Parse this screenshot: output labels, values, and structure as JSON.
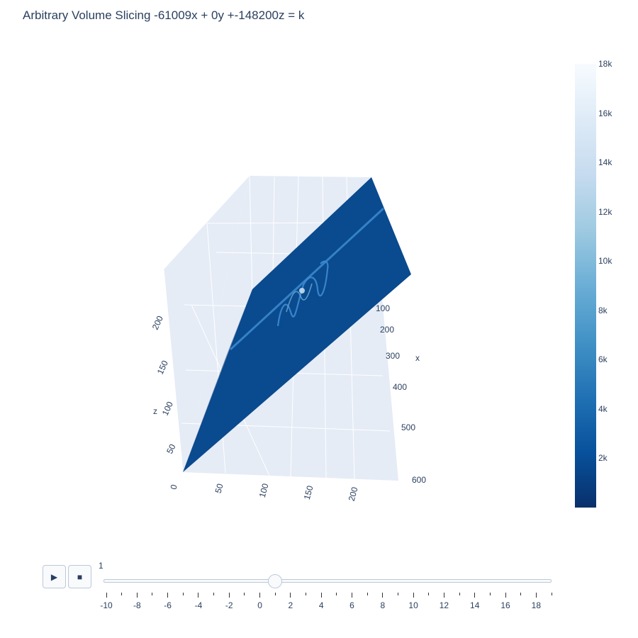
{
  "title": "Arbitrary Volume Slicing -61009x + 0y +-148200z = k",
  "chart_data": {
    "type": "surface",
    "colorscale": "Blues (reversed)",
    "axes": {
      "x": {
        "label": "x",
        "ticks": [
          "100",
          "200",
          "300",
          "400",
          "500",
          "600"
        ]
      },
      "y": {
        "label": "",
        "ticks": [
          "0",
          "50",
          "100",
          "150",
          "200"
        ]
      },
      "z": {
        "label": "z",
        "ticks": [
          "50",
          "100",
          "150",
          "200"
        ]
      }
    },
    "colorbar": {
      "range": [
        0,
        18000
      ],
      "ticks": [
        "2k",
        "4k",
        "6k",
        "8k",
        "10k",
        "12k",
        "14k",
        "16k",
        "18k"
      ]
    }
  },
  "colors": {
    "scene_bg": "#e5ecf6",
    "grid": "#ffffff",
    "slice": "#0a4a8e",
    "slice_dark": "#08306b",
    "feature": "#3d8bd0"
  },
  "slider": {
    "play_icon": "play-icon",
    "stop_icon": "stop-icon",
    "current_value": "1",
    "value": 1,
    "min": -10,
    "max": 19,
    "labels": [
      "-10",
      "-8",
      "-6",
      "-4",
      "-2",
      "0",
      "2",
      "4",
      "6",
      "8",
      "10",
      "12",
      "14",
      "16",
      "18"
    ]
  }
}
